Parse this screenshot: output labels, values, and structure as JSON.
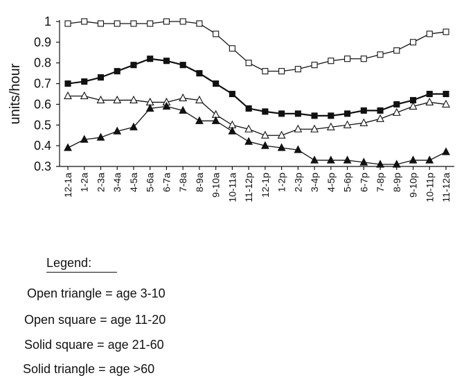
{
  "chart_data": {
    "type": "line",
    "ylabel": "units/hour",
    "xlabel": "",
    "ylim": [
      0.3,
      1
    ],
    "yticks": [
      0.3,
      0.4,
      0.5,
      0.6,
      0.7,
      0.8,
      0.9,
      1
    ],
    "ytick_labels": [
      "0.3",
      "0.4",
      "0.5",
      "0.6",
      "0.7",
      "0.8",
      "0.9",
      "1"
    ],
    "categories": [
      "12-1a",
      "1-2a",
      "2-3a",
      "3-4a",
      "4-5a",
      "5-6a",
      "6-7a",
      "7-8a",
      "8-9a",
      "9-10a",
      "10-11a",
      "11-12p",
      "12-1p",
      "1-2p",
      "2-3p",
      "3-4p",
      "4-5p",
      "5-6p",
      "6-7p",
      "7-8p",
      "8-9p",
      "9-10p",
      "10-11p",
      "11-12a"
    ],
    "grid": false,
    "series": [
      {
        "name": "Open square = age 11-20",
        "marker": "square-open",
        "values": [
          0.99,
          1.0,
          0.99,
          0.99,
          0.99,
          0.99,
          1.0,
          1.0,
          0.99,
          0.94,
          0.87,
          0.8,
          0.76,
          0.76,
          0.77,
          0.79,
          0.81,
          0.82,
          0.82,
          0.84,
          0.86,
          0.9,
          0.94,
          0.95
        ]
      },
      {
        "name": "Solid square = age 21-60",
        "marker": "square-solid",
        "values": [
          0.7,
          0.71,
          0.73,
          0.76,
          0.79,
          0.82,
          0.81,
          0.79,
          0.75,
          0.7,
          0.65,
          0.58,
          0.565,
          0.555,
          0.555,
          0.545,
          0.545,
          0.555,
          0.57,
          0.57,
          0.6,
          0.62,
          0.65,
          0.65
        ]
      },
      {
        "name": "Open triangle = age 3-10",
        "marker": "triangle-open",
        "values": [
          0.64,
          0.64,
          0.62,
          0.62,
          0.62,
          0.61,
          0.61,
          0.63,
          0.62,
          0.55,
          0.5,
          0.48,
          0.45,
          0.45,
          0.48,
          0.48,
          0.49,
          0.5,
          0.51,
          0.53,
          0.56,
          0.59,
          0.61,
          0.6
        ]
      },
      {
        "name": "Solid triangle = age >60",
        "marker": "triangle-solid",
        "values": [
          0.39,
          0.43,
          0.44,
          0.47,
          0.49,
          0.58,
          0.59,
          0.57,
          0.52,
          0.52,
          0.47,
          0.42,
          0.4,
          0.39,
          0.38,
          0.33,
          0.33,
          0.33,
          0.32,
          0.31,
          0.31,
          0.33,
          0.33,
          0.37
        ]
      }
    ]
  },
  "legend": {
    "title": "Legend:",
    "items": [
      "Open triangle = age 3-10",
      "Open square = age 11-20",
      "Solid square = age 21-60",
      "Solid triangle = age >60"
    ]
  }
}
